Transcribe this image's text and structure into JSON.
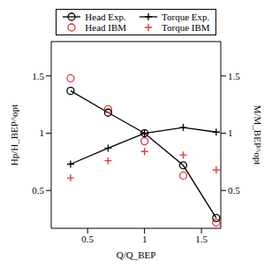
{
  "chart_data": {
    "type": "line",
    "x_label": "Q/Q_BEP",
    "y_label": "Hp/H_BEP^opt",
    "y2_label": "M/M_BEP^opt",
    "x": [
      0.35,
      0.68,
      1.0,
      1.34,
      1.63
    ],
    "xlim": [
      0.18,
      1.67
    ],
    "xticks": [
      0.5,
      1,
      1.5
    ],
    "ylim": [
      0.17,
      1.8
    ],
    "yticks": [
      0.5,
      1,
      1.5
    ],
    "y2lim": [
      0.17,
      1.8
    ],
    "y2ticks": [
      0.5,
      1,
      1.5
    ],
    "grid": false,
    "legend": "top",
    "series": [
      {
        "name": "Head Exp.",
        "type": "line",
        "color": "#000000",
        "marker": "circle",
        "line_style": "solid",
        "axis": "y",
        "values": [
          1.37,
          1.18,
          1.0,
          0.72,
          0.26
        ]
      },
      {
        "name": "Head IBM",
        "type": "scatter",
        "color": "#e8323c",
        "marker": "circle",
        "axis": "y",
        "values": [
          1.48,
          1.21,
          0.93,
          0.63,
          0.22
        ]
      },
      {
        "name": "Torque Exp.",
        "type": "line",
        "color": "#000000",
        "marker": "plus",
        "line_style": "solid",
        "axis": "y2",
        "values": [
          0.73,
          0.87,
          1.0,
          1.05,
          1.01
        ]
      },
      {
        "name": "Torque IBM",
        "type": "scatter",
        "color": "#e8323c",
        "marker": "plus",
        "axis": "y2",
        "values": [
          0.61,
          0.76,
          0.84,
          0.81,
          0.68
        ]
      }
    ]
  }
}
